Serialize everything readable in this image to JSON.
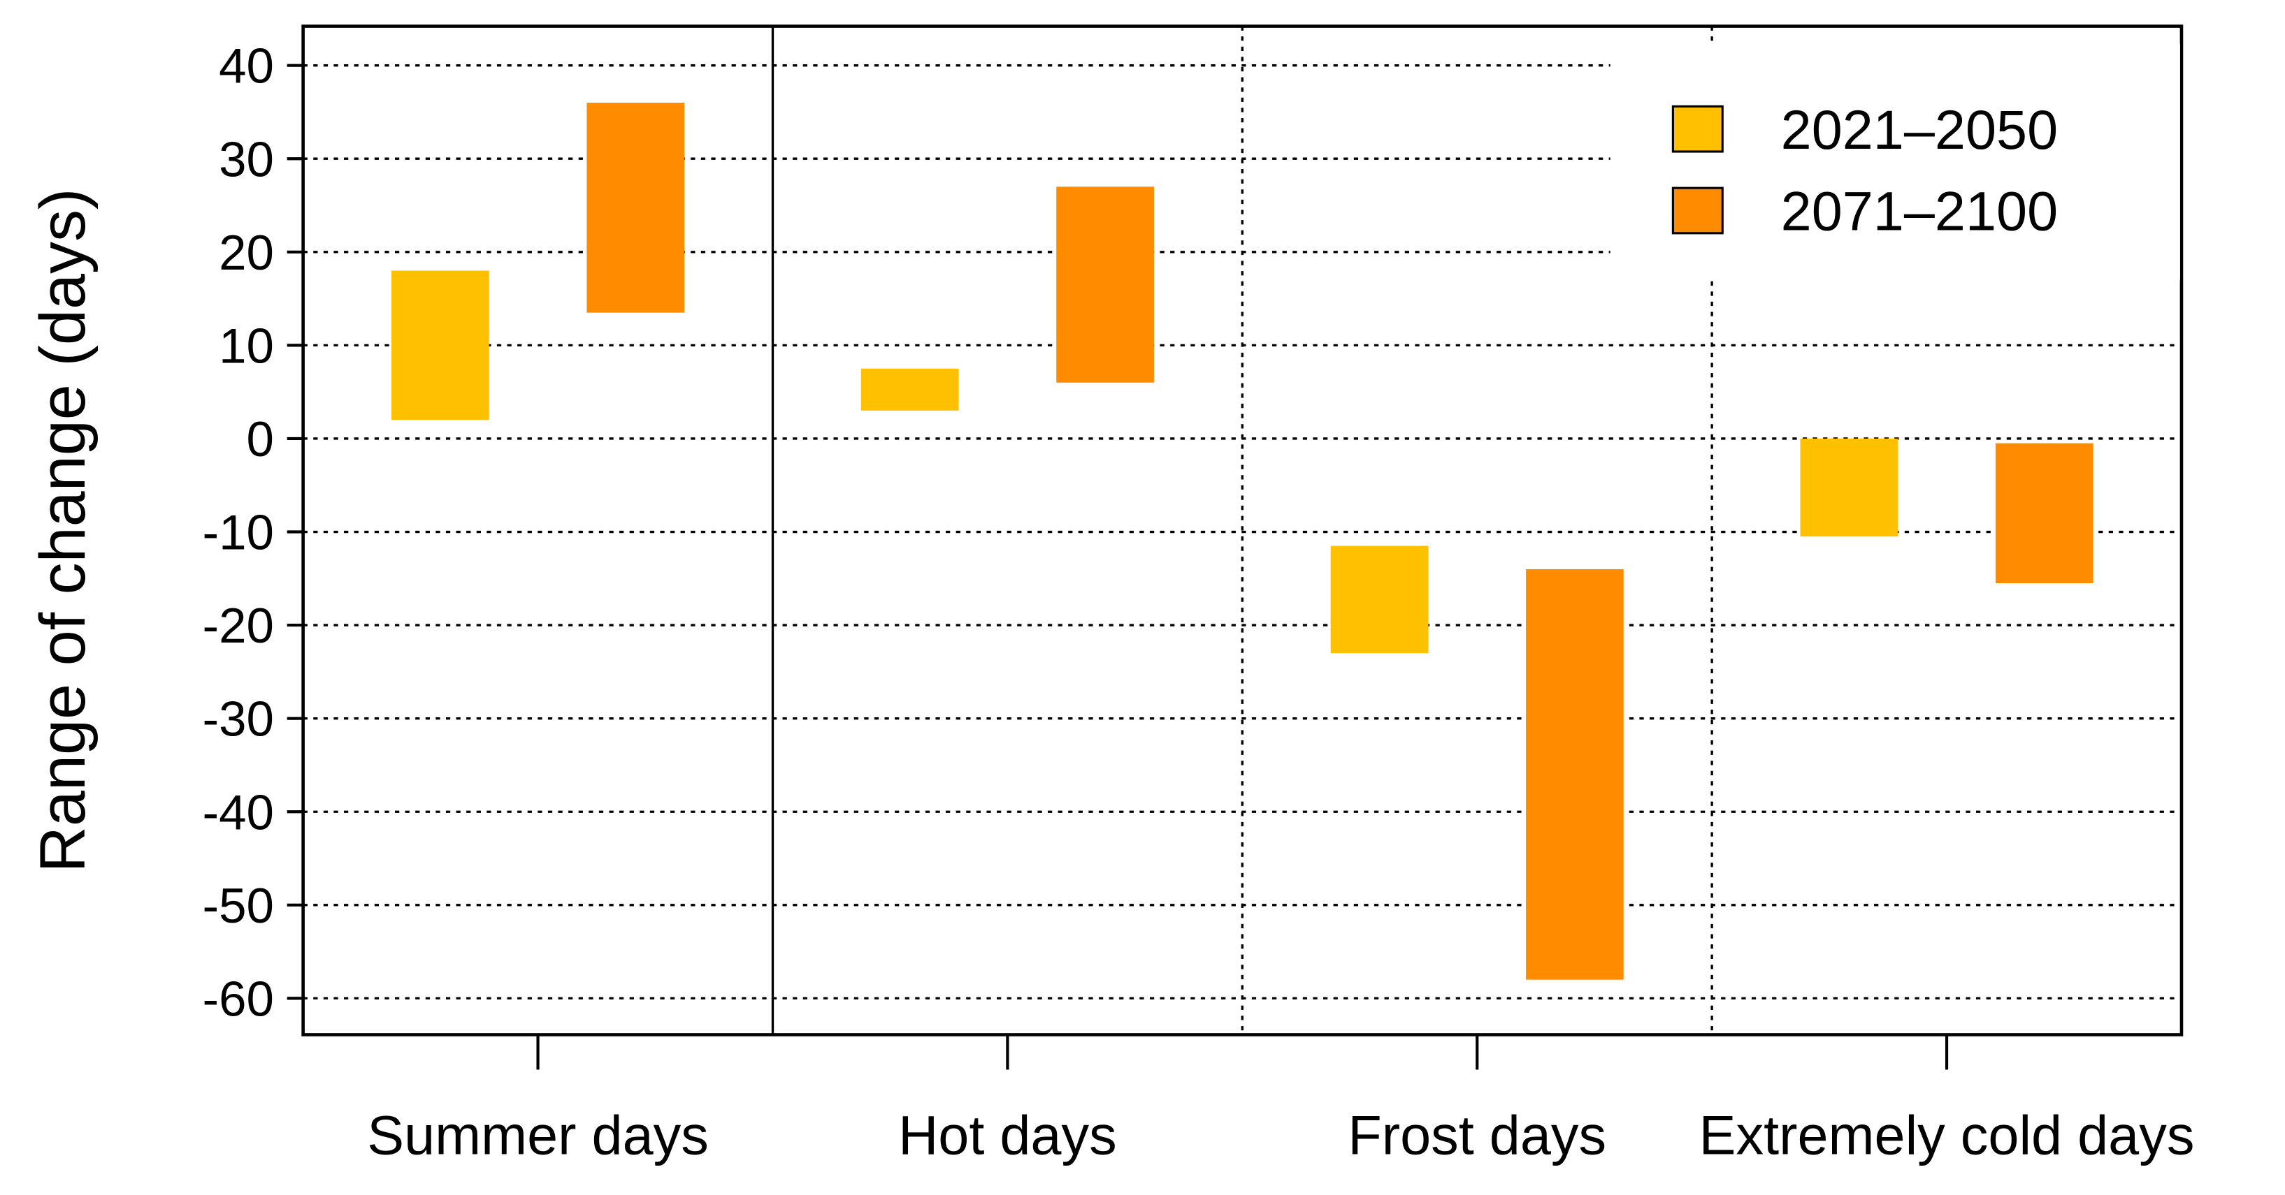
{
  "chart_data": {
    "type": "floating-bar",
    "y_label": "Range of change (days)",
    "categories": [
      "Summer days",
      "Hot days",
      "Frost days",
      "Extremely cold days"
    ],
    "series": [
      {
        "name": "2021–2050",
        "color": "#fec000",
        "low": [
          2,
          3,
          -23,
          -10.5
        ],
        "high": [
          18,
          7.5,
          -11.5,
          0
        ]
      },
      {
        "name": "2071–2100",
        "color": "#ff8b00",
        "low": [
          13.5,
          6,
          -58,
          -15.5
        ],
        "high": [
          36,
          27,
          -14,
          -0.5
        ]
      }
    ],
    "ylim": [
      -63.9,
      44.2
    ],
    "yticks": [
      -60,
      -50,
      -40,
      -30,
      -20,
      -10,
      0,
      10,
      20,
      30,
      40
    ],
    "grid": true,
    "legend": "top-right"
  }
}
